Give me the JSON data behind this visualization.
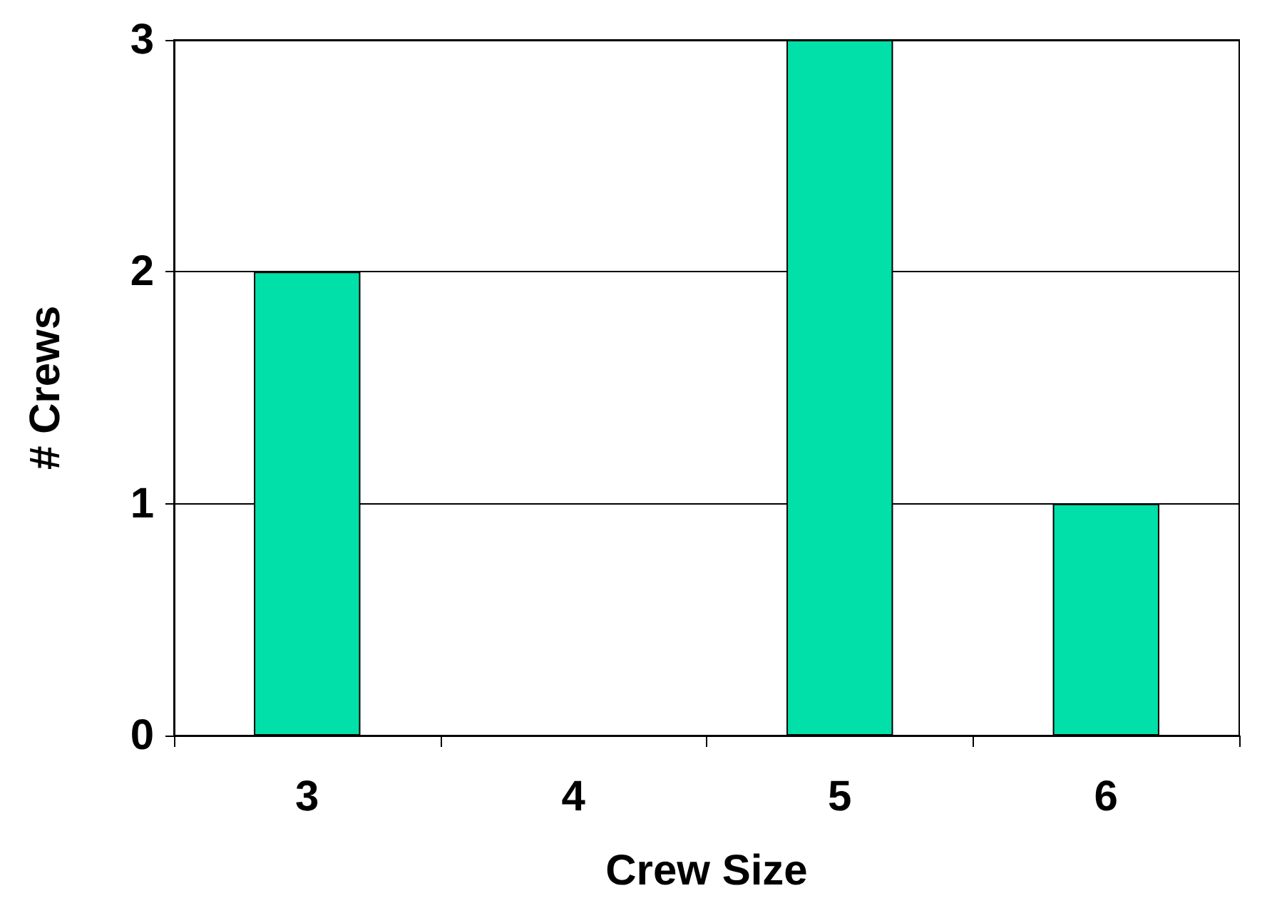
{
  "chart_data": {
    "type": "bar",
    "xlabel": "Crew Size",
    "ylabel": "# Crews",
    "categories": [
      "3",
      "4",
      "5",
      "6"
    ],
    "values": [
      2,
      0,
      3,
      1
    ],
    "color": "#00e0a8",
    "ylim": [
      0,
      3
    ],
    "yticks": [
      0,
      1,
      2,
      3
    ],
    "grid": "y"
  }
}
